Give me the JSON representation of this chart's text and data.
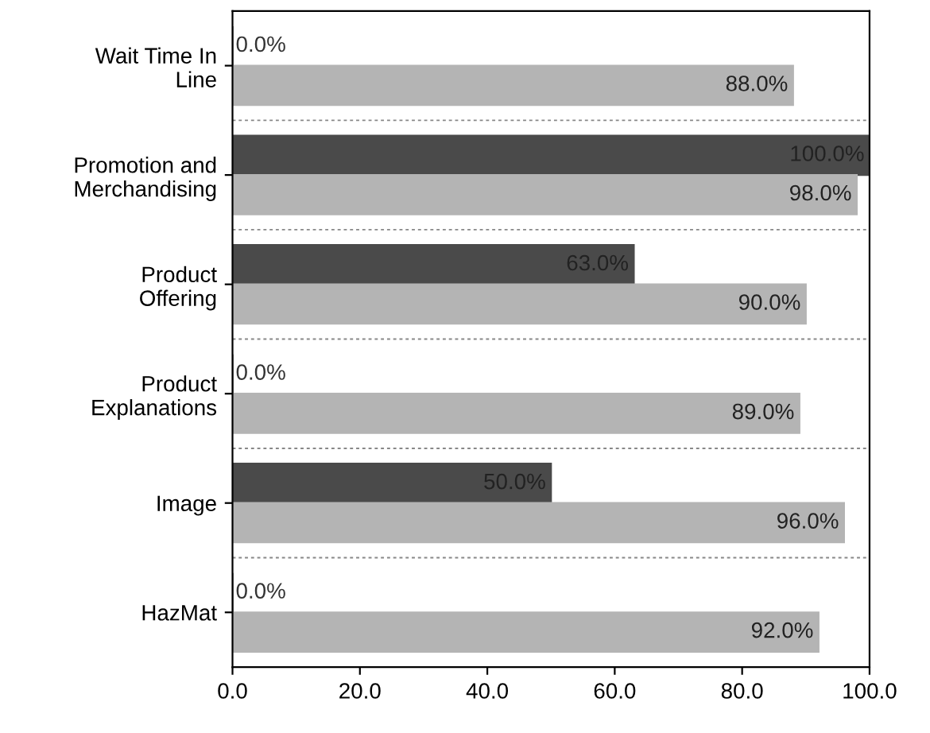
{
  "chart_data": {
    "type": "bar",
    "orientation": "horizontal",
    "categories": [
      "Wait Time In\nLine",
      "Promotion and\nMerchandising",
      "Product\nOffering",
      "Product\nExplanations",
      "Image",
      "HazMat"
    ],
    "series": [
      {
        "color": "#4a4a4a",
        "values": [
          0,
          100,
          63,
          0,
          50,
          0
        ],
        "value_labels": [
          "0.0%",
          "100.0%",
          "63.0%",
          "0.0%",
          "50.0%",
          "0.0%"
        ]
      },
      {
        "color": "#b4b4b4",
        "values": [
          88,
          98,
          90,
          89,
          96,
          92
        ],
        "value_labels": [
          "88.0%",
          "98.0%",
          "90.0%",
          "89.0%",
          "96.0%",
          "92.0%"
        ]
      }
    ],
    "xlim": [
      0,
      100
    ],
    "xticks": [
      {
        "value": 0,
        "label": "0.0"
      },
      {
        "value": 20,
        "label": "20.0"
      },
      {
        "value": 40,
        "label": "40.0"
      },
      {
        "value": 60,
        "label": "60.0"
      },
      {
        "value": 80,
        "label": "80.0"
      },
      {
        "value": 100,
        "label": "100.0"
      }
    ],
    "grid": false
  }
}
